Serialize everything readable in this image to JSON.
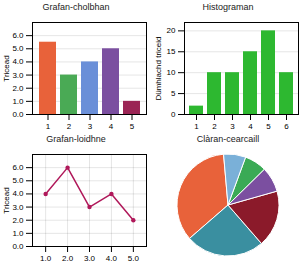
{
  "chart_data": [
    {
      "type": "bar",
      "title": "Grafan-cholbhan",
      "ylabel": "Tricead",
      "categories": [
        1,
        2,
        3,
        4,
        5
      ],
      "values": [
        5.5,
        3.0,
        4.0,
        5.0,
        1.0
      ],
      "colors": [
        "#e8623a",
        "#4aaa55",
        "#6a8fd8",
        "#7b4fa0",
        "#9b2555"
      ],
      "ylim": [
        0,
        7
      ],
      "yticks": [
        0,
        1,
        2,
        3,
        4,
        5,
        6
      ],
      "grid": true
    },
    {
      "type": "bar",
      "title": "Histograman",
      "ylabel": "Dümhlachd triceid",
      "categories": [
        1,
        2,
        3,
        4,
        5,
        6
      ],
      "values": [
        2,
        10,
        10,
        15,
        20,
        10
      ],
      "color": "#2db830",
      "ylim": [
        0,
        22
      ],
      "yticks": [
        0,
        5,
        10,
        15,
        20
      ],
      "grid": true
    },
    {
      "type": "line",
      "title": "Grafan-loidhne",
      "ylabel": "Tricead",
      "x": [
        1,
        2,
        3,
        4,
        5
      ],
      "values": [
        4,
        6,
        3,
        4,
        2
      ],
      "color": "#b0185a",
      "marker": "circle",
      "xlim": [
        0.4,
        5.6
      ],
      "xticks": [
        1,
        2,
        3,
        4,
        5
      ],
      "ylim": [
        0,
        7
      ],
      "yticks": [
        0,
        1,
        2,
        3,
        4,
        5,
        6
      ],
      "grid": true
    },
    {
      "type": "pie",
      "title": "Clàran-cearcaill",
      "values": [
        35,
        25,
        18,
        8,
        7,
        7
      ],
      "colors": [
        "#e8623a",
        "#3a8fa0",
        "#8b1a2a",
        "#7b4fa0",
        "#3aaa55",
        "#7ab0d8"
      ]
    }
  ]
}
